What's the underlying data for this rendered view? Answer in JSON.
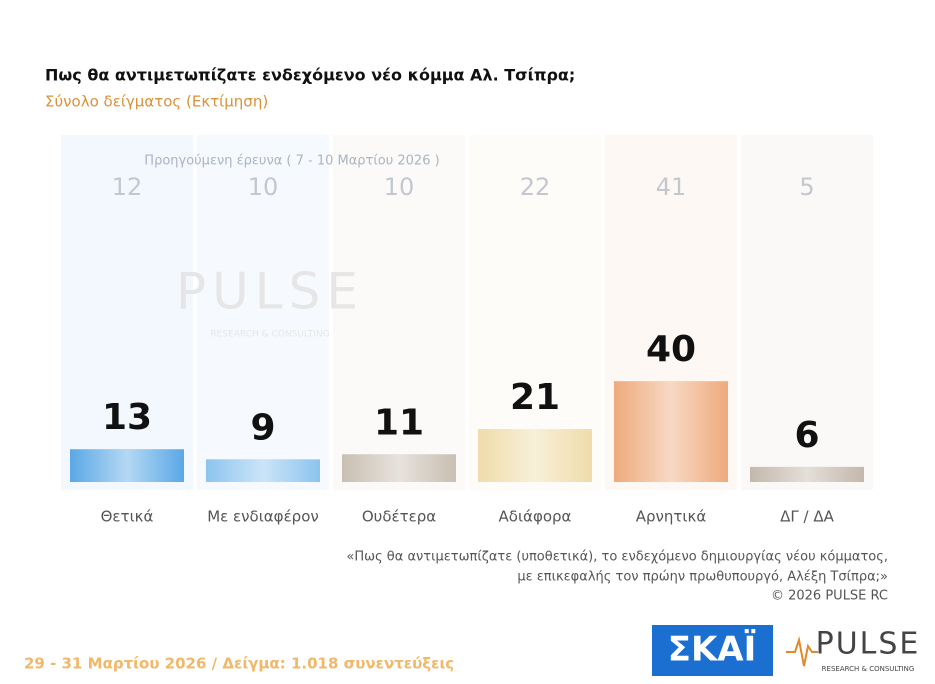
{
  "chart_data": {
    "type": "bar",
    "title": "Πως θα αντιμετωπίζατε ενδεχόμενο νέο κόμμα Αλ. Τσίπρα;",
    "subtitle": "Σύνολο δείγματος  (Εκτίμηση)",
    "categories": [
      "Θετικά",
      "Με ενδιαφέρον",
      "Ουδέτερα",
      "Αδιάφορα",
      "Αρνητικά",
      "ΔΓ / ΔΑ"
    ],
    "values": [
      13,
      9,
      11,
      21,
      40,
      6
    ],
    "colors": [
      "#5aa8e6",
      "#8cc4ee",
      "#c9bfb2",
      "#efdcaa",
      "#eeaa7c",
      "#c3b8ab"
    ],
    "previous_label": "Προηγούμενη έρευνα ( 7 - 10 Μαρτίου 2026 )",
    "previous_values": [
      12,
      10,
      10,
      22,
      41,
      5
    ],
    "note": [
      "«Πως θα αντιμετωπίζατε (υποθετικά), το ενδεχόμενο δημιουργίας νέου κόμματος,",
      "με επικεφαλής τον πρώην πρωθυπουργό, Αλέξη Τσίπρα;»",
      "©  2026  PULSE RC"
    ],
    "footer": "29 - 31  Μαρτίου 2026  /  Δείγμα:  1.018 συνεντεύξεις",
    "watermark": "PULSE",
    "watermark_tagline": "RESEARCH & CONSULTING",
    "logos": {
      "skai": "ΣΚΑΪ",
      "pulse": "PULSE",
      "pulse_tagline": "RESEARCH & CONSULTING"
    }
  }
}
